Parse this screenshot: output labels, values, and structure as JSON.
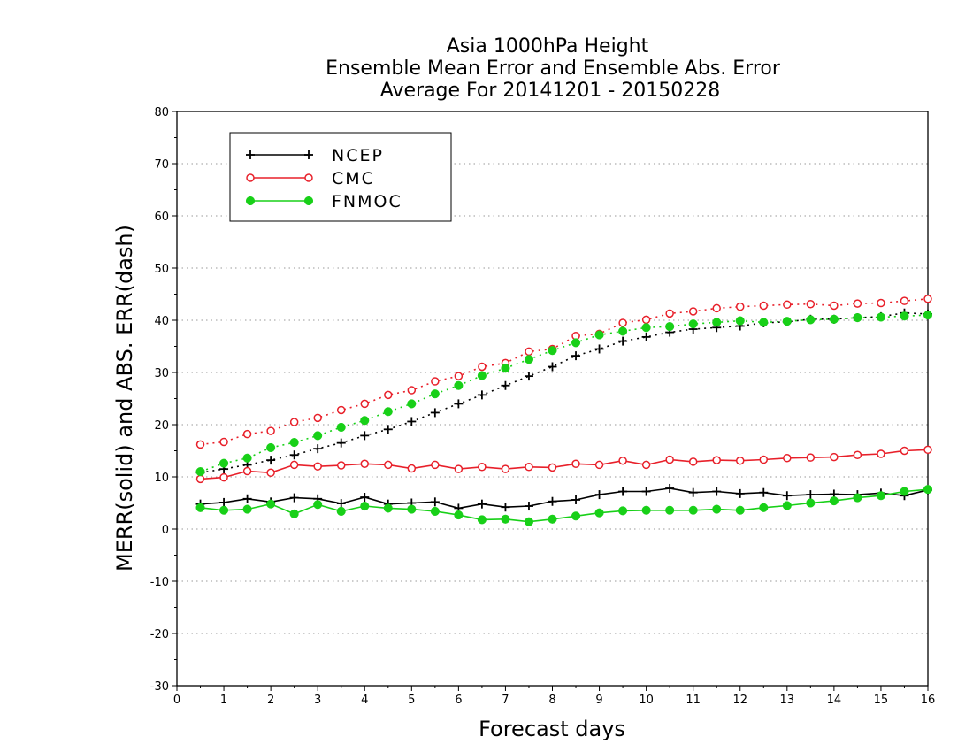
{
  "chart_data": {
    "type": "line",
    "title": [
      "Asia 1000hPa Height",
      "Ensemble Mean Error and Ensemble Abs. Error",
      "Average For 20141201 - 20150228"
    ],
    "xlabel": "Forecast days",
    "ylabel": "MERR(solid) and ABS. ERR(dash)",
    "xlim": [
      0,
      16
    ],
    "ylim": [
      -30,
      80
    ],
    "xticks": [
      0,
      1,
      2,
      3,
      4,
      5,
      6,
      7,
      8,
      9,
      10,
      11,
      12,
      13,
      14,
      15,
      16
    ],
    "yticks": [
      -30,
      -20,
      -10,
      0,
      10,
      20,
      30,
      40,
      50,
      60,
      70,
      80
    ],
    "grid": "horizontal dotted",
    "legend_position": "top-left",
    "x": [
      0.5,
      1,
      1.5,
      2,
      2.5,
      3,
      3.5,
      4,
      4.5,
      5,
      5.5,
      6,
      6.5,
      7,
      7.5,
      8,
      8.5,
      9,
      9.5,
      10,
      10.5,
      11,
      11.5,
      12,
      12.5,
      13,
      13.5,
      14,
      14.5,
      15,
      15.5,
      16
    ],
    "series": [
      {
        "name": "NCEP",
        "color": "#000000",
        "marker": "plus",
        "merr": [
          4.8,
          5.1,
          5.8,
          5.2,
          6.0,
          5.8,
          4.9,
          6.1,
          4.8,
          5.0,
          5.2,
          4.0,
          4.8,
          4.2,
          4.4,
          5.3,
          5.6,
          6.6,
          7.2,
          7.2,
          7.8,
          7.0,
          7.2,
          6.8,
          7.0,
          6.4,
          6.6,
          6.7,
          6.6,
          6.9,
          6.4,
          7.5
        ],
        "abs_err": [
          10.8,
          11.5,
          12.3,
          13.2,
          14.2,
          15.4,
          16.5,
          17.9,
          19.1,
          20.6,
          22.3,
          24.0,
          25.7,
          27.5,
          29.3,
          31.1,
          33.2,
          34.5,
          36.0,
          36.8,
          37.7,
          38.3,
          38.6,
          38.9,
          39.5,
          39.7,
          40.2,
          40.2,
          40.5,
          40.7,
          41.4,
          41.2
        ]
      },
      {
        "name": "CMC",
        "color": "#e8202a",
        "marker": "open-circle",
        "merr": [
          9.6,
          9.9,
          11.1,
          10.8,
          12.3,
          12.0,
          12.2,
          12.5,
          12.3,
          11.6,
          12.3,
          11.5,
          11.9,
          11.5,
          11.9,
          11.8,
          12.5,
          12.3,
          13.1,
          12.3,
          13.3,
          12.9,
          13.2,
          13.1,
          13.3,
          13.6,
          13.7,
          13.8,
          14.2,
          14.4,
          15.0,
          15.2
        ],
        "abs_err": [
          16.2,
          16.7,
          18.2,
          18.8,
          20.5,
          21.3,
          22.8,
          24.0,
          25.7,
          26.6,
          28.3,
          29.3,
          31.1,
          31.8,
          34.0,
          34.5,
          37.0,
          37.4,
          39.5,
          40.1,
          41.3,
          41.7,
          42.3,
          42.6,
          42.8,
          43.0,
          43.1,
          42.8,
          43.2,
          43.3,
          43.7,
          44.1
        ]
      },
      {
        "name": "FNMOC",
        "color": "#18d018",
        "marker": "filled-circle",
        "merr": [
          4.1,
          3.6,
          3.8,
          4.8,
          2.9,
          4.7,
          3.4,
          4.4,
          4.0,
          3.8,
          3.4,
          2.7,
          1.8,
          1.9,
          1.4,
          1.9,
          2.5,
          3.1,
          3.5,
          3.6,
          3.6,
          3.6,
          3.8,
          3.6,
          4.1,
          4.5,
          5.0,
          5.4,
          6.0,
          6.4,
          7.2,
          7.6
        ],
        "abs_err": [
          11.0,
          12.6,
          13.6,
          15.6,
          16.6,
          17.9,
          19.5,
          20.8,
          22.5,
          24.0,
          25.9,
          27.5,
          29.4,
          30.8,
          32.5,
          34.2,
          35.7,
          37.2,
          37.9,
          38.6,
          38.8,
          39.3,
          39.6,
          39.9,
          39.6,
          39.8,
          40.1,
          40.2,
          40.5,
          40.6,
          40.8,
          41.0
        ]
      }
    ]
  }
}
